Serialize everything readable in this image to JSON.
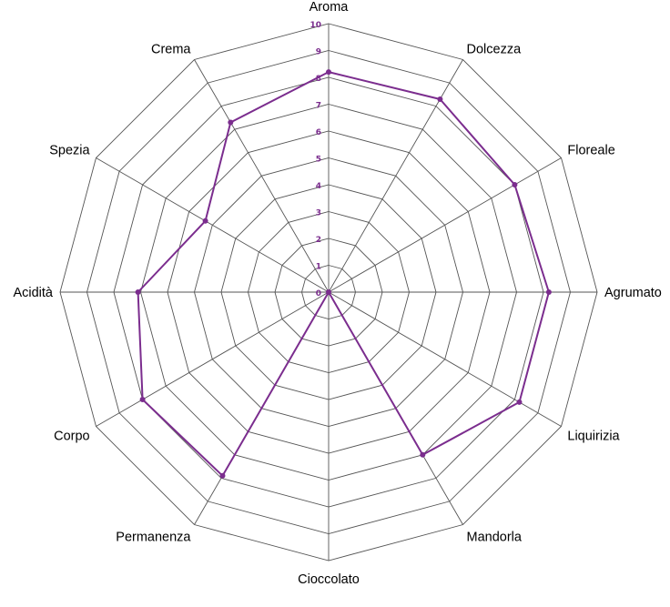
{
  "chart_data": {
    "type": "radar",
    "axes": [
      "Aroma",
      "Dolcezza",
      "Floreale",
      "Agrumato",
      "Liquirizia",
      "Mandorla",
      "Cioccolato",
      "Permanenza",
      "Corpo",
      "Acidità",
      "Spezia",
      "Crema"
    ],
    "ticks": [
      "0",
      "1",
      "2",
      "3",
      "4",
      "5",
      "6",
      "7",
      "8",
      "9",
      "10"
    ],
    "range": [
      0,
      10
    ],
    "series": [
      {
        "values": [
          8.2,
          8.3,
          8.0,
          8.2,
          8.2,
          7.0,
          0,
          7.9,
          8.0,
          7.1,
          5.3,
          7.3
        ]
      }
    ],
    "color": "#7b2d8e",
    "grid_color": "#555555"
  }
}
